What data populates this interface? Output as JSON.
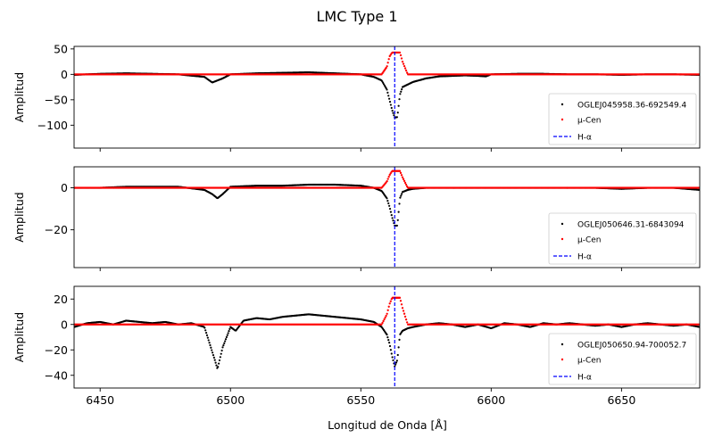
{
  "chart_data": {
    "type": "scatter",
    "title": "LMC Type 1",
    "xlabel": "Longitud de Onda [Å]",
    "xlim": [
      6440,
      6680
    ],
    "x_ticks": [
      6450,
      6500,
      6550,
      6600,
      6650
    ],
    "reference_line": {
      "name": "H-α",
      "x": 6563,
      "color": "#0000ff",
      "style": "dashed"
    },
    "panels": [
      {
        "ylabel": "Amplitud",
        "ylim": [
          -145,
          55
        ],
        "y_ticks": [
          50,
          0,
          -50,
          -100
        ],
        "y_tick_labels": [
          "50",
          "0",
          "−50",
          "−100"
        ],
        "legend_position": "lower-right",
        "series": [
          {
            "name": "OGLEJ045958.36-692549.4",
            "color": "#000000",
            "x": [
              6440,
              6450,
              6460,
              6470,
              6480,
              6490,
              6493,
              6495,
              6497,
              6500,
              6510,
              6520,
              6530,
              6540,
              6550,
              6555,
              6558,
              6560,
              6561,
              6562,
              6563,
              6564,
              6565,
              6566,
              6568,
              6570,
              6575,
              6580,
              6590,
              6595,
              6598,
              6600,
              6610,
              6620,
              6630,
              6640,
              6650,
              6660,
              6670,
              6680
            ],
            "y": [
              -1,
              1,
              2,
              1,
              0,
              -5,
              -16,
              -12,
              -8,
              0,
              2,
              3,
              4,
              2,
              0,
              -5,
              -12,
              -30,
              -50,
              -70,
              -85,
              -84,
              -40,
              -25,
              -20,
              -15,
              -8,
              -4,
              -2,
              -3,
              -4,
              0,
              1,
              1,
              0,
              0,
              -1,
              0,
              0,
              -1
            ]
          },
          {
            "name": "μ-Cen",
            "color": "#ff0000",
            "x": [
              6440,
              6558,
              6560,
              6561,
              6562,
              6563,
              6564,
              6565,
              6566,
              6568,
              6680
            ],
            "y": [
              0,
              0,
              15,
              35,
              43,
              43,
              43,
              43,
              25,
              0,
              0
            ]
          }
        ]
      },
      {
        "ylabel": "Amplitud",
        "ylim": [
          -38,
          10
        ],
        "y_ticks": [
          0,
          -20
        ],
        "y_tick_labels": [
          "0",
          "−20"
        ],
        "legend_position": "lower-right",
        "series": [
          {
            "name": "OGLEJ050646.31-6843094",
            "color": "#000000",
            "x": [
              6440,
              6450,
              6460,
              6470,
              6480,
              6490,
              6493,
              6495,
              6497,
              6500,
              6510,
              6520,
              6530,
              6540,
              6550,
              6555,
              6558,
              6560,
              6561,
              6562,
              6563,
              6564,
              6565,
              6566,
              6568,
              6570,
              6575,
              6580,
              6590,
              6600,
              6610,
              6620,
              6630,
              6640,
              6650,
              6660,
              6670,
              6680
            ],
            "y": [
              0,
              0,
              0.5,
              0.5,
              0.5,
              -1,
              -3,
              -5,
              -3,
              0.5,
              1,
              1,
              1.5,
              1.5,
              1,
              0,
              -1.5,
              -5,
              -9,
              -14,
              -18,
              -18,
              -5,
              -2,
              -1,
              -0.5,
              0,
              0,
              0,
              0,
              0,
              0,
              0,
              0,
              -0.5,
              0,
              0,
              -1
            ]
          },
          {
            "name": "μ-Cen",
            "color": "#ff0000",
            "x": [
              6440,
              6558,
              6560,
              6561,
              6562,
              6563,
              6564,
              6565,
              6566,
              6568,
              6680
            ],
            "y": [
              0,
              0,
              3,
              6,
              8,
              8,
              8,
              8,
              5,
              0,
              0
            ]
          }
        ]
      },
      {
        "ylabel": "Amplitud",
        "ylim": [
          -50,
          30
        ],
        "y_ticks": [
          20,
          0,
          -20,
          -40
        ],
        "y_tick_labels": [
          "20",
          "0",
          "−20",
          "−40"
        ],
        "legend_position": "lower-right",
        "series": [
          {
            "name": "OGLEJ050650.94-700052.7",
            "color": "#000000",
            "x": [
              6440,
              6445,
              6450,
              6455,
              6460,
              6465,
              6470,
              6475,
              6480,
              6485,
              6490,
              6492,
              6494,
              6495,
              6497,
              6500,
              6502,
              6505,
              6510,
              6515,
              6520,
              6525,
              6530,
              6535,
              6540,
              6545,
              6550,
              6555,
              6558,
              6560,
              6561,
              6562,
              6563,
              6564,
              6565,
              6566,
              6568,
              6570,
              6575,
              6580,
              6585,
              6590,
              6595,
              6600,
              6605,
              6610,
              6615,
              6620,
              6625,
              6630,
              6635,
              6640,
              6645,
              6650,
              6655,
              6660,
              6665,
              6670,
              6675,
              6680
            ],
            "y": [
              -2,
              1,
              2,
              0,
              3,
              2,
              1,
              2,
              0,
              1,
              -2,
              -15,
              -28,
              -35,
              -18,
              -2,
              -5,
              3,
              5,
              4,
              6,
              7,
              8,
              7,
              6,
              5,
              4,
              2,
              -2,
              -8,
              -15,
              -25,
              -33,
              -28,
              -8,
              -5,
              -3,
              -2,
              0,
              1,
              0,
              -2,
              0,
              -3,
              1,
              0,
              -2,
              1,
              0,
              1,
              0,
              -1,
              0,
              -2,
              0,
              1,
              0,
              -1,
              0,
              -2
            ]
          },
          {
            "name": "μ-Cen",
            "color": "#ff0000",
            "x": [
              6440,
              6558,
              6560,
              6561,
              6562,
              6563,
              6564,
              6565,
              6566,
              6568,
              6680
            ],
            "y": [
              0,
              0,
              8,
              16,
              21,
              21,
              21,
              21,
              13,
              0,
              0
            ]
          }
        ]
      }
    ]
  }
}
